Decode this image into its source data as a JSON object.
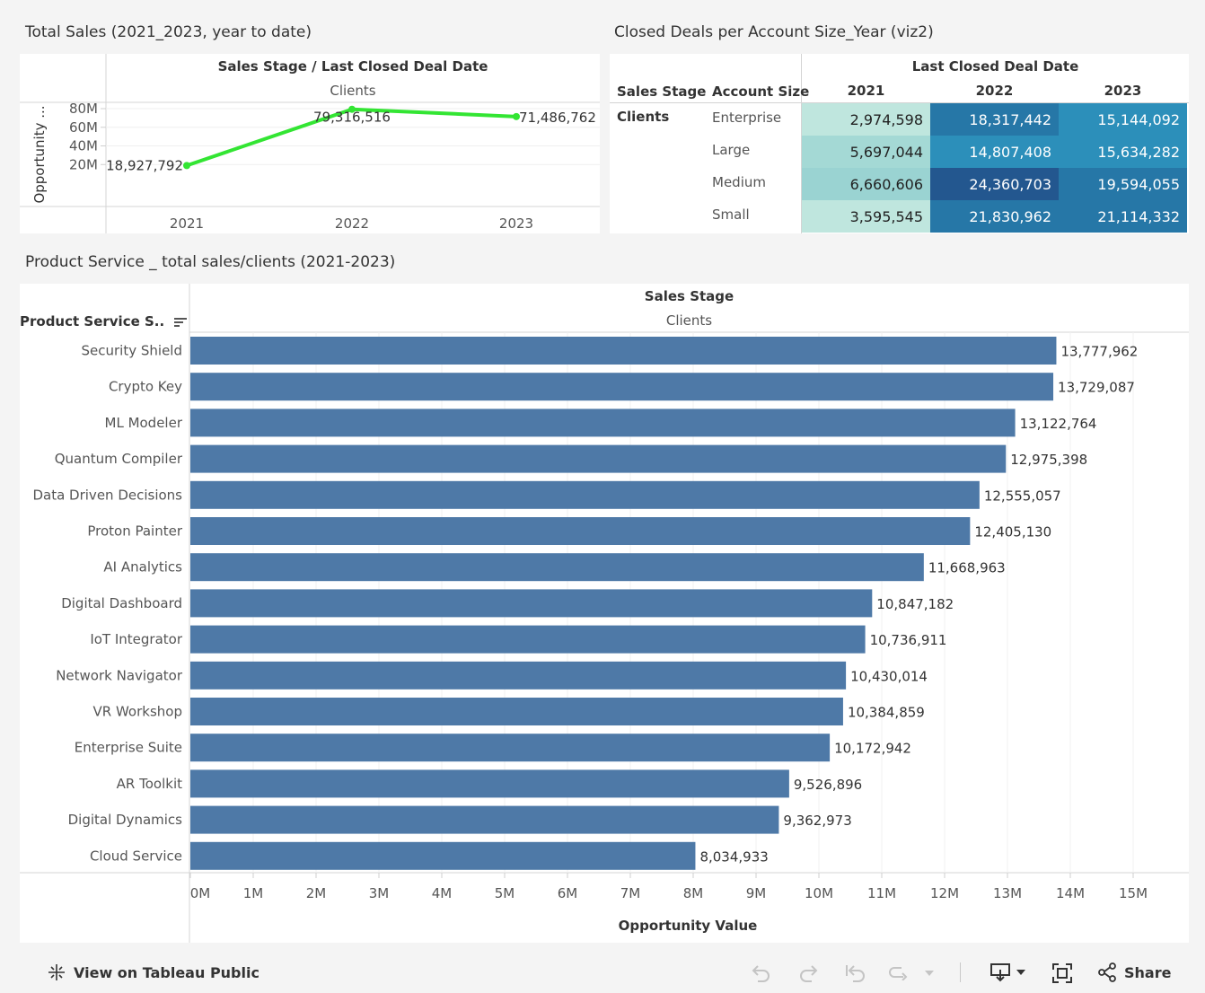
{
  "line_panel": {
    "title": "Total Sales (2021_2023, year to date)",
    "header_top": "Sales Stage / Last Closed Deal Date",
    "header_sub": "Clients",
    "y_axis_title": "Opportunity ..."
  },
  "heatmap_panel": {
    "title": "Closed Deals per Account Size_Year (viz2)",
    "col_header_top": "Last Closed Deal Date",
    "row_header_1": "Sales Stage",
    "row_header_2": "Account Size",
    "stage_value": "Clients"
  },
  "bar_panel": {
    "title": "Product Service _ total sales/clients (2021-2023)",
    "header_top": "Sales Stage",
    "header_sub": "Clients",
    "row_header": "Product Service S..",
    "x_axis_title": "Opportunity Value"
  },
  "footer": {
    "view_label": "View on Tableau Public",
    "share_label": "Share"
  },
  "colors": {
    "line": "#33e533",
    "bar": "#4e79a7",
    "heat_1": "#bfe6de",
    "heat_2": "#a4d9d5",
    "heat_3": "#9ad3d2",
    "heat_4": "#2c8fba",
    "heat_5": "#2677a7",
    "heat_6": "#23578f"
  },
  "chart_data": [
    {
      "type": "line",
      "title": "Total Sales (2021_2023, year to date)",
      "x": [
        "2021",
        "2022",
        "2023"
      ],
      "series": [
        {
          "values": [
            18927792,
            79316516,
            71486762
          ]
        }
      ],
      "data_labels": [
        "18,927,792",
        "79,316,516",
        "71,486,762"
      ],
      "ylabel": "Opportunity ...",
      "yticks": [
        "20M",
        "40M",
        "60M",
        "80M"
      ],
      "ylim": [
        0,
        85000000
      ],
      "grid": true
    },
    {
      "type": "heatmap",
      "title": "Closed Deals per Account Size_Year (viz2)",
      "columns": [
        "2021",
        "2022",
        "2023"
      ],
      "rows": [
        "Enterprise",
        "Large",
        "Medium",
        "Small"
      ],
      "values": [
        [
          2974598,
          18317442,
          15144092
        ],
        [
          5697044,
          14807408,
          15634282
        ],
        [
          6660606,
          24360703,
          19594055
        ],
        [
          3595545,
          21830962,
          21114332
        ]
      ],
      "labels": [
        [
          "2,974,598",
          "18,317,442",
          "15,144,092"
        ],
        [
          "5,697,044",
          "14,807,408",
          "15,634,282"
        ],
        [
          "6,660,606",
          "24,360,703",
          "19,594,055"
        ],
        [
          "3,595,545",
          "21,830,962",
          "21,114,332"
        ]
      ]
    },
    {
      "type": "bar",
      "title": "Product Service _ total sales/clients (2021-2023)",
      "categories": [
        "Security Shield",
        "Crypto Key",
        "ML Modeler",
        "Quantum Compiler",
        "Data Driven Decisions",
        "Proton Painter",
        "AI Analytics",
        "Digital Dashboard",
        "IoT Integrator",
        "Network Navigator",
        "VR Workshop",
        "Enterprise Suite",
        "AR Toolkit",
        "Digital Dynamics",
        "Cloud Service"
      ],
      "values": [
        13777962,
        13729087,
        13122764,
        12975398,
        12555057,
        12405130,
        11668963,
        10847182,
        10736911,
        10430014,
        10384859,
        10172942,
        9526896,
        9362973,
        8034933
      ],
      "data_labels": [
        "13,777,962",
        "13,729,087",
        "13,122,764",
        "12,975,398",
        "12,555,057",
        "12,405,130",
        "11,668,963",
        "10,847,182",
        "10,736,911",
        "10,430,014",
        "10,384,859",
        "10,172,942",
        "9,526,896",
        "9,362,973",
        "8,034,933"
      ],
      "xlabel": "Opportunity Value",
      "xticks": [
        "0M",
        "1M",
        "2M",
        "3M",
        "4M",
        "5M",
        "6M",
        "7M",
        "8M",
        "9M",
        "10M",
        "11M",
        "12M",
        "13M",
        "14M",
        "15M"
      ],
      "xlim": [
        0,
        15000000
      ],
      "grid": true
    }
  ]
}
